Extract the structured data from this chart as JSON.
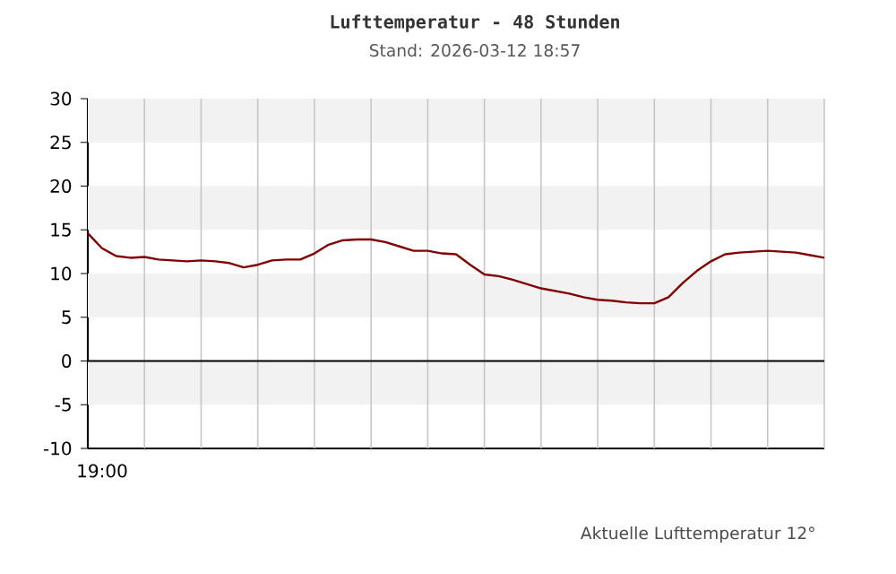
{
  "chart_data": {
    "type": "line",
    "title": "Lufttemperatur - 48 Stunden",
    "subtitle": "Stand: 2026-03-12 18:57",
    "categories": [
      null,
      null,
      null,
      null,
      null,
      null,
      null,
      null,
      null,
      null,
      null,
      null,
      null,
      null,
      null,
      null,
      null,
      null,
      null,
      null,
      null,
      null,
      null,
      null,
      null,
      null,
      null,
      null,
      null,
      null,
      null,
      null,
      null,
      null,
      null,
      null,
      null,
      null,
      null,
      null,
      null,
      null,
      null,
      null,
      null,
      null,
      null,
      null,
      null,
      null,
      null,
      null,
      null
    ],
    "series": [
      {
        "color": "#800000",
        "values": [
          14.6,
          12.9,
          12.0,
          11.8,
          11.9,
          11.6,
          11.5,
          11.4,
          11.5,
          11.4,
          11.2,
          10.7,
          11.0,
          11.5,
          11.6,
          11.6,
          12.3,
          13.3,
          13.8,
          13.9,
          13.9,
          13.6,
          13.1,
          12.6,
          12.6,
          12.3,
          12.2,
          11.0,
          9.9,
          9.7,
          9.3,
          8.8,
          8.3,
          8.0,
          7.7,
          7.3,
          7.0,
          6.9,
          6.7,
          6.6,
          6.6,
          7.3,
          8.9,
          10.3,
          11.4,
          12.2,
          12.4,
          12.5,
          12.6,
          12.5,
          12.4,
          12.1,
          11.8
        ]
      }
    ],
    "ylim": [
      -10,
      30
    ],
    "yticks": [
      -10,
      -5,
      0,
      5,
      10,
      15,
      20,
      25,
      30
    ],
    "grid": "x",
    "bands": [
      {
        "axis": "y",
        "from": 25,
        "to": 30,
        "color": "#f2f2f2"
      },
      {
        "axis": "y",
        "from": 15,
        "to": 20,
        "color": "#f2f2f2"
      },
      {
        "axis": "y",
        "from": 5,
        "to": 10,
        "color": "#f2f2f2"
      },
      {
        "axis": "y",
        "from": -5,
        "to": 0,
        "color": "#f2f2f2"
      }
    ],
    "ref_lines": [
      {
        "axis": "y",
        "value": 0,
        "color": "#000000"
      }
    ],
    "annotations": [
      "19:00",
      "Aktuelle Lufttemperatur 12°"
    ]
  }
}
